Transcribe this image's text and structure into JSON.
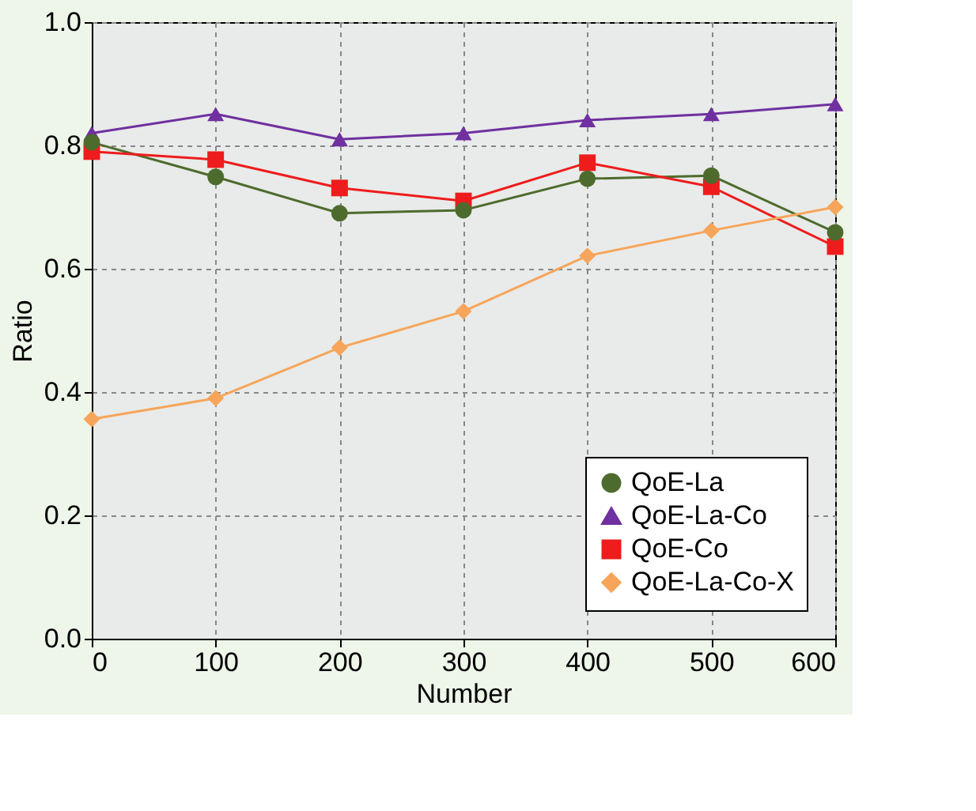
{
  "chart_data": {
    "type": "line",
    "xlabel": "Number",
    "ylabel": "Ratio",
    "x": [
      0,
      100,
      200,
      300,
      400,
      500,
      600
    ],
    "xlim": [
      0,
      600
    ],
    "xticks": [
      0,
      100,
      200,
      300,
      400,
      500,
      600
    ],
    "ylim": [
      0,
      1
    ],
    "yticks": [
      {
        "value": 0,
        "label": "0.0"
      },
      {
        "value": 0.2,
        "label": "0.2"
      },
      {
        "value": 0.4,
        "label": "0.4"
      },
      {
        "value": 0.6,
        "label": "0.6"
      },
      {
        "value": 0.8,
        "label": "0.8"
      },
      {
        "value": 1,
        "label": "1.0"
      }
    ],
    "grid": true,
    "legend": "bottom right",
    "line_style": "solid",
    "series": [
      {
        "name": "QoE-La",
        "color": "#4e6b2e",
        "marker": "circle",
        "values": [
          0.805,
          0.749,
          0.69,
          0.695,
          0.746,
          0.751,
          0.659
        ]
      },
      {
        "name": "QoE-La-Co",
        "color": "#7030a0",
        "marker": "triangle",
        "values": [
          0.82,
          0.851,
          0.81,
          0.82,
          0.841,
          0.851,
          0.867
        ]
      },
      {
        "name": "QoE-Co",
        "color": "#ee1c1c",
        "marker": "square",
        "values": [
          0.79,
          0.777,
          0.731,
          0.71,
          0.772,
          0.733,
          0.636
        ]
      },
      {
        "name": "QoE-La-Co-X",
        "color": "#f7a55a",
        "marker": "diamond",
        "values": [
          0.356,
          0.39,
          0.472,
          0.531,
          0.621,
          0.662,
          0.7
        ]
      }
    ]
  }
}
